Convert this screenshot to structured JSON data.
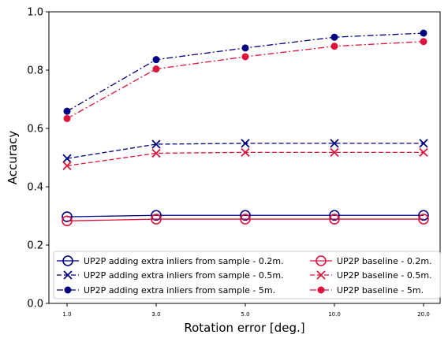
{
  "chart_data": {
    "type": "line",
    "title": "",
    "xlabel": "Rotation error [deg.]",
    "ylabel": "Accuracy",
    "categories": [
      "1.0",
      "3.0",
      "5.0",
      "10.0",
      "20.0"
    ],
    "ylim": [
      0.0,
      1.0
    ],
    "yticks": [
      "0.0",
      "0.2",
      "0.4",
      "0.6",
      "0.8",
      "1.0"
    ],
    "grid": false,
    "legend_position": "lower-center",
    "legend_columns": 2,
    "series": [
      {
        "name": "UP2P adding extra inliers from sample - 0.2m.",
        "values": [
          0.297,
          0.302,
          0.302,
          0.302,
          0.302
        ],
        "color": "#000080",
        "line_style": "solid",
        "marker": "circle-open"
      },
      {
        "name": "UP2P adding extra inliers from sample - 0.5m.",
        "values": [
          0.497,
          0.546,
          0.549,
          0.549,
          0.549
        ],
        "color": "#000080",
        "line_style": "dashed",
        "marker": "x"
      },
      {
        "name": "UP2P adding extra inliers from sample - 5m.",
        "values": [
          0.659,
          0.836,
          0.876,
          0.913,
          0.927
        ],
        "color": "#000080",
        "line_style": "dashdot",
        "marker": "circle-filled"
      },
      {
        "name": "UP2P baseline - 0.2m.",
        "values": [
          0.283,
          0.289,
          0.289,
          0.289,
          0.289
        ],
        "color": "#dc143c",
        "line_style": "solid",
        "marker": "circle-open"
      },
      {
        "name": "UP2P baseline - 0.5m.",
        "values": [
          0.472,
          0.515,
          0.518,
          0.518,
          0.518
        ],
        "color": "#dc143c",
        "line_style": "dashed",
        "marker": "x"
      },
      {
        "name": "UP2P baseline - 5m.",
        "values": [
          0.634,
          0.804,
          0.846,
          0.882,
          0.898
        ],
        "color": "#dc143c",
        "line_style": "dashdot",
        "marker": "circle-filled"
      }
    ]
  }
}
